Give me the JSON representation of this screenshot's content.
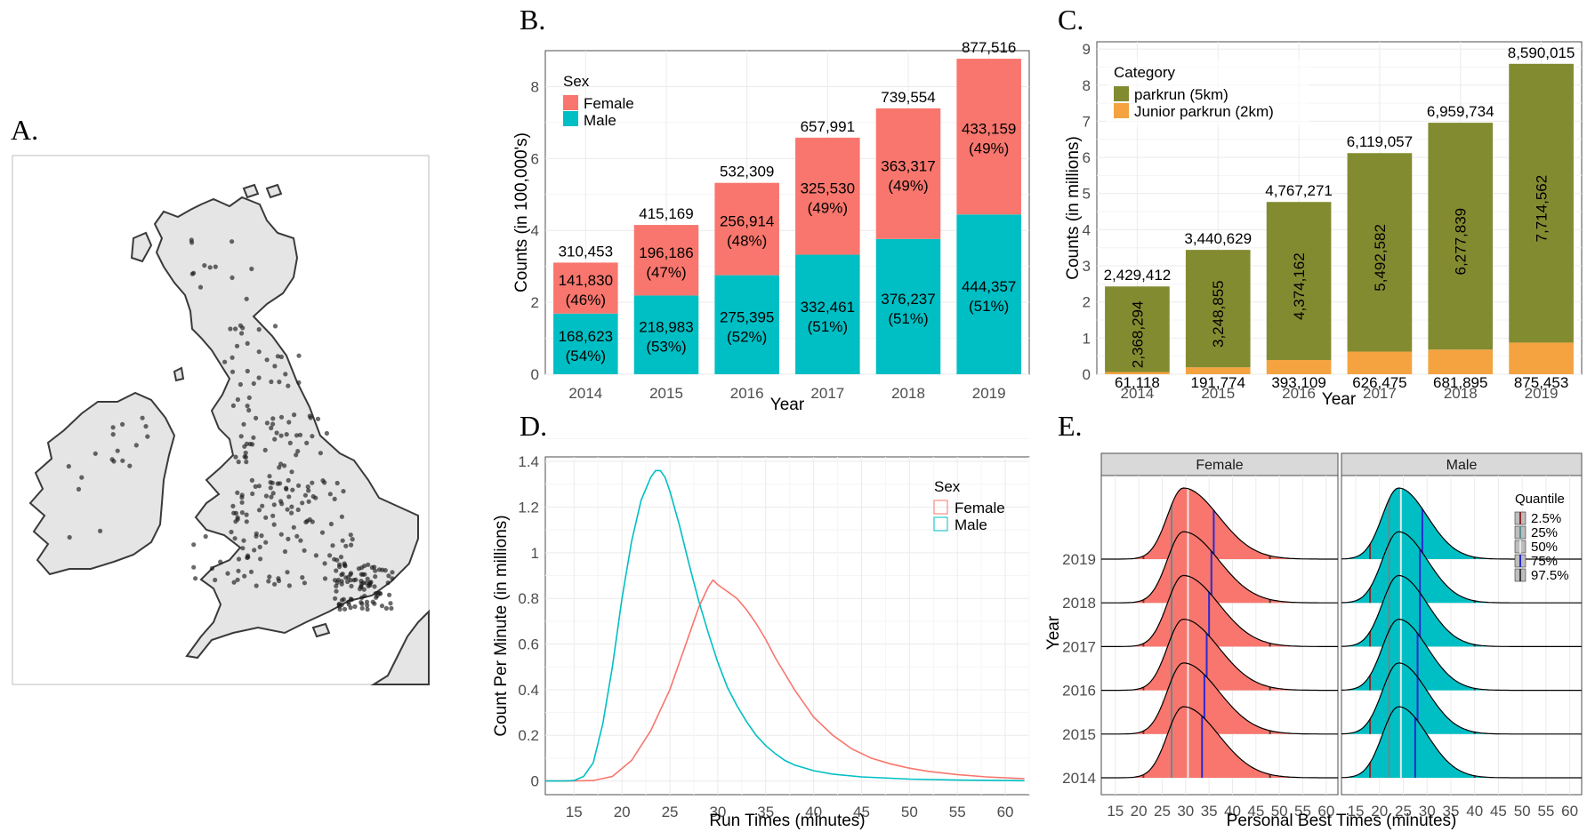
{
  "panels": {
    "A": "A.",
    "B": "B.",
    "C": "C.",
    "D": "D.",
    "E": "E."
  },
  "colors": {
    "female": "#F8766D",
    "male": "#00BFC4",
    "parkrun": "#838B31",
    "junior": "#F4A340",
    "q_low": "#8B2A2A",
    "q_25": "#5E8F8F",
    "q_50": "#E8E8E8",
    "q_75": "#2A2AD0",
    "q_hi": "#3A3A3A"
  },
  "chart_data": [
    {
      "panel": "B",
      "type": "bar",
      "categories": [
        "2014",
        "2015",
        "2016",
        "2017",
        "2018",
        "2019"
      ],
      "xlabel": "Year",
      "ylabel": "Counts (in 100,000's)",
      "ylim": [
        0,
        9
      ],
      "yticks": [
        "0",
        "2",
        "4",
        "6",
        "8"
      ],
      "grid": true,
      "legend": {
        "title": "Sex",
        "placement": "top-left"
      },
      "series": [
        {
          "name": "Male",
          "values": [
            168623,
            218983,
            275395,
            332461,
            376237,
            444357
          ],
          "labels": [
            "168,623",
            "218,983",
            "275,395",
            "332,461",
            "376,237",
            "444,357"
          ],
          "pct": [
            "(54%)",
            "(53%)",
            "(52%)",
            "(51%)",
            "(51%)",
            "(51%)"
          ]
        },
        {
          "name": "Female",
          "values": [
            141830,
            196186,
            256914,
            325530,
            363317,
            433159
          ],
          "labels": [
            "141,830",
            "196,186",
            "256,914",
            "325,530",
            "363,317",
            "433,159"
          ],
          "pct": [
            "(46%)",
            "(47%)",
            "(48%)",
            "(49%)",
            "(49%)",
            "(49%)"
          ]
        }
      ],
      "totals": [
        "310,453",
        "415,169",
        "532,309",
        "657,991",
        "739,554",
        "877,516"
      ]
    },
    {
      "panel": "C",
      "type": "bar",
      "categories": [
        "2014",
        "2015",
        "2016",
        "2017",
        "2018",
        "2019"
      ],
      "xlabel": "Year",
      "ylabel": "Counts (in millions)",
      "ylim": [
        0,
        9.2
      ],
      "yticks": [
        "0",
        "1",
        "2",
        "3",
        "4",
        "5",
        "6",
        "7",
        "8",
        "9"
      ],
      "grid": true,
      "legend": {
        "title": "Category",
        "placement": "top-left"
      },
      "series": [
        {
          "name": "Junior parkrun (2km)",
          "values": [
            61118,
            191774,
            393109,
            626475,
            681895,
            875453
          ],
          "labels": [
            "61,118",
            "191,774",
            "393,109",
            "626,475",
            "681,895",
            "875,453"
          ]
        },
        {
          "name": "parkrun (5km)",
          "values": [
            2368294,
            3248855,
            4374162,
            5492582,
            6277839,
            7714562
          ],
          "labels": [
            "2,368,294",
            "3,248,855",
            "4,374,162",
            "5,492,582",
            "6,277,839",
            "7,714,562"
          ]
        }
      ],
      "totals": [
        "2,429,412",
        "3,440,629",
        "4,767,271",
        "6,119,057",
        "6,959,734",
        "8,590,015"
      ]
    },
    {
      "panel": "D",
      "type": "line",
      "xlabel": "Run Times (minutes)",
      "ylabel": "Count Per Minute (in millions)",
      "xlim": [
        12,
        62.5
      ],
      "ylim": [
        -0.06,
        1.42
      ],
      "xticks": [
        "15",
        "20",
        "25",
        "30",
        "35",
        "40",
        "45",
        "50",
        "55",
        "60"
      ],
      "yticks": [
        "0",
        "0.2",
        "0.4",
        "0.6",
        "0.8",
        "1",
        "1.2",
        "1.4"
      ],
      "grid": true,
      "legend": {
        "title": "Sex",
        "placement": "top-right"
      },
      "series": [
        {
          "name": "Female",
          "x": [
            12,
            15,
            17,
            19,
            21,
            23,
            25,
            26,
            27,
            28,
            29,
            29.5,
            30,
            31,
            32,
            33,
            34,
            35,
            36,
            37,
            38,
            39,
            40,
            42,
            44,
            46,
            48,
            50,
            52,
            55,
            58,
            62
          ],
          "y": [
            0,
            0,
            0.002,
            0.02,
            0.09,
            0.22,
            0.4,
            0.52,
            0.64,
            0.76,
            0.85,
            0.88,
            0.86,
            0.83,
            0.8,
            0.75,
            0.69,
            0.62,
            0.54,
            0.47,
            0.4,
            0.34,
            0.28,
            0.2,
            0.14,
            0.1,
            0.075,
            0.056,
            0.042,
            0.028,
            0.018,
            0.01
          ]
        },
        {
          "name": "Male",
          "x": [
            12,
            14,
            15,
            16,
            17,
            18,
            19,
            20,
            21,
            22,
            23,
            23.5,
            24,
            24.5,
            25,
            26,
            27,
            28,
            29,
            30,
            31,
            32,
            33,
            34,
            35,
            36,
            37,
            38,
            40,
            42,
            45,
            50,
            55,
            62
          ],
          "y": [
            0,
            0,
            0.002,
            0.02,
            0.08,
            0.25,
            0.5,
            0.8,
            1.05,
            1.23,
            1.33,
            1.36,
            1.36,
            1.33,
            1.27,
            1.12,
            0.95,
            0.79,
            0.65,
            0.52,
            0.41,
            0.33,
            0.26,
            0.2,
            0.155,
            0.12,
            0.09,
            0.07,
            0.045,
            0.03,
            0.018,
            0.008,
            0.004,
            0.001
          ]
        }
      ]
    },
    {
      "panel": "E",
      "type": "area",
      "facets": [
        "Female",
        "Male"
      ],
      "xlabel": "Personal Best Times (minutes)",
      "ylabel": "Year",
      "xlim": [
        12,
        62.5
      ],
      "xticks": [
        "15",
        "20",
        "25",
        "30",
        "35",
        "40",
        "45",
        "50",
        "55",
        "60"
      ],
      "years": [
        "2014",
        "2015",
        "2016",
        "2017",
        "2018",
        "2019"
      ],
      "legend": {
        "title": "Quantile",
        "placement": "top-right",
        "entries": [
          "2.5%",
          "25%",
          "50%",
          "75%",
          "97.5%"
        ]
      },
      "quantiles": {
        "Female": {
          "q025": 21,
          "q25": 27,
          "q50": 30.5,
          "q75": [
            33.5,
            34,
            34.5,
            35,
            35.5,
            36
          ],
          "q975": 48
        },
        "Male": {
          "q025": 18,
          "q25": 22,
          "q50": 24.5,
          "q75": [
            27.5,
            28,
            28,
            28.5,
            28.5,
            29
          ],
          "q975": 40
        }
      },
      "density_peak": {
        "Female": 29.5,
        "Male": 24
      }
    }
  ]
}
